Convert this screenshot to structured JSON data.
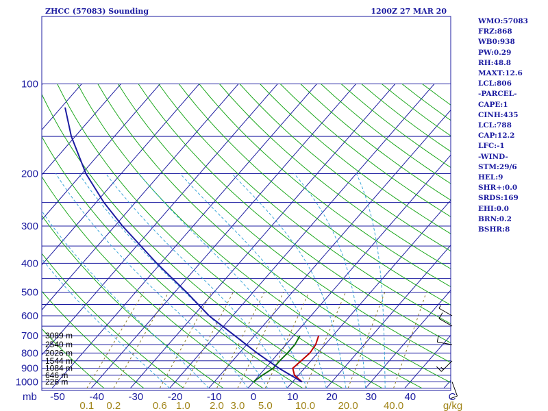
{
  "header": {
    "station": "ZHCC (57083) Sounding",
    "time": "1200Z 27 MAR 20"
  },
  "colors": {
    "isobar": "#1c1ca0",
    "isotherm": "#1c1ca0",
    "dry_adiabat": "#1ea81e",
    "moist_adiabat": "#3aa6d8",
    "mixing_ratio": "#8a7a28",
    "temperature": "#c00000",
    "dewpoint": "#107010",
    "parcel": "#1c1ca0",
    "wind_barb": "#000000"
  },
  "chart_data": {
    "type": "line",
    "title": "ZHCC (57083) Sounding",
    "subtitle": "1200Z 27 MAR 20",
    "xlabel": "",
    "ylabel": "mb",
    "y_scale": "log",
    "ylim": [
      1050,
      100
    ],
    "xlim": [
      -50,
      50
    ],
    "grid": true,
    "pressure_ticks": [
      100,
      200,
      300,
      400,
      500,
      600,
      700,
      800,
      900,
      1000
    ],
    "pressure_tick_labels": [
      "100",
      "200",
      "300",
      "400",
      "500",
      "600",
      "700",
      "800",
      "900",
      "1000"
    ],
    "temperature_ticks": [
      -50,
      -40,
      -30,
      -20,
      -10,
      0,
      10,
      20,
      30,
      40
    ],
    "temperature_tick_labels": [
      "-50",
      "-40",
      "-30",
      "-20",
      "-10",
      "0",
      "10",
      "20",
      "30",
      "40"
    ],
    "mixing_ratio_labels": [
      "0.1",
      "0.2",
      "0.6",
      "1.0",
      "2.0",
      "3.0",
      "5.0",
      "10.0",
      "20.0",
      "40.0"
    ],
    "mixing_ratio_unit": "g/kg",
    "height_labels": [
      {
        "p": 1000,
        "text": "226 m"
      },
      {
        "p": 950,
        "text": "646 m"
      },
      {
        "p": 900,
        "text": "1084 m"
      },
      {
        "p": 850,
        "text": "1544 m"
      },
      {
        "p": 800,
        "text": "2026 m"
      },
      {
        "p": 750,
        "text": "2540 m"
      },
      {
        "p": 700,
        "text": "3089 m"
      }
    ],
    "series": [
      {
        "name": "Temperature",
        "points": [
          {
            "p": 1000,
            "t": 12.4
          },
          {
            "p": 950,
            "t": 9.0
          },
          {
            "p": 900,
            "t": 7.0
          },
          {
            "p": 850,
            "t": 7.5
          },
          {
            "p": 800,
            "t": 8.0
          },
          {
            "p": 750,
            "t": 7.6
          },
          {
            "p": 700,
            "t": 6.4
          }
        ]
      },
      {
        "name": "Dewpoint",
        "points": [
          {
            "p": 1000,
            "t": 0.0
          },
          {
            "p": 950,
            "t": 0.8
          },
          {
            "p": 900,
            "t": 2.0
          },
          {
            "p": 850,
            "t": 2.0
          },
          {
            "p": 800,
            "t": 2.3
          },
          {
            "p": 750,
            "t": 2.3
          },
          {
            "p": 700,
            "t": 1.6
          }
        ]
      },
      {
        "name": "Parcel",
        "points": [
          {
            "p": 1000,
            "t": 12.4
          },
          {
            "p": 900,
            "t": 3.5
          },
          {
            "p": 800,
            "t": -5.5
          },
          {
            "p": 700,
            "t": -15.0
          },
          {
            "p": 600,
            "t": -26.0
          },
          {
            "p": 500,
            "t": -37.0
          },
          {
            "p": 400,
            "t": -51.0
          },
          {
            "p": 300,
            "t": -68.0
          },
          {
            "p": 250,
            "t": -78.0
          },
          {
            "p": 200,
            "t": -89.0
          },
          {
            "p": 150,
            "t": -101.0
          },
          {
            "p": 120,
            "t": -109.0
          }
        ]
      }
    ],
    "wind_barbs": [
      {
        "p": 1000,
        "dir": 160,
        "speed": 10
      },
      {
        "p": 850,
        "dir": 225,
        "speed": 15
      },
      {
        "p": 750,
        "dir": 280,
        "speed": 10
      },
      {
        "p": 650,
        "dir": 300,
        "speed": 10
      },
      {
        "p": 600,
        "dir": 300,
        "speed": 5
      }
    ]
  },
  "stats": [
    "WMO:57083",
    "FRZ:868",
    "WB0:938",
    "PW:0.29",
    "RH:48.8",
    "MAXT:12.6",
    "LCL:806",
    "-PARCEL-",
    "CAPE:1",
    "CINH:435",
    "LCL:788",
    "CAP:12.2",
    "LFC:-1",
    "-WIND-",
    "STM:29/6",
    "HEL:9",
    "SHR+:0.0",
    "SRDS:169",
    "EHI:0.0",
    "BRN:0.2",
    "BSHR:8"
  ]
}
